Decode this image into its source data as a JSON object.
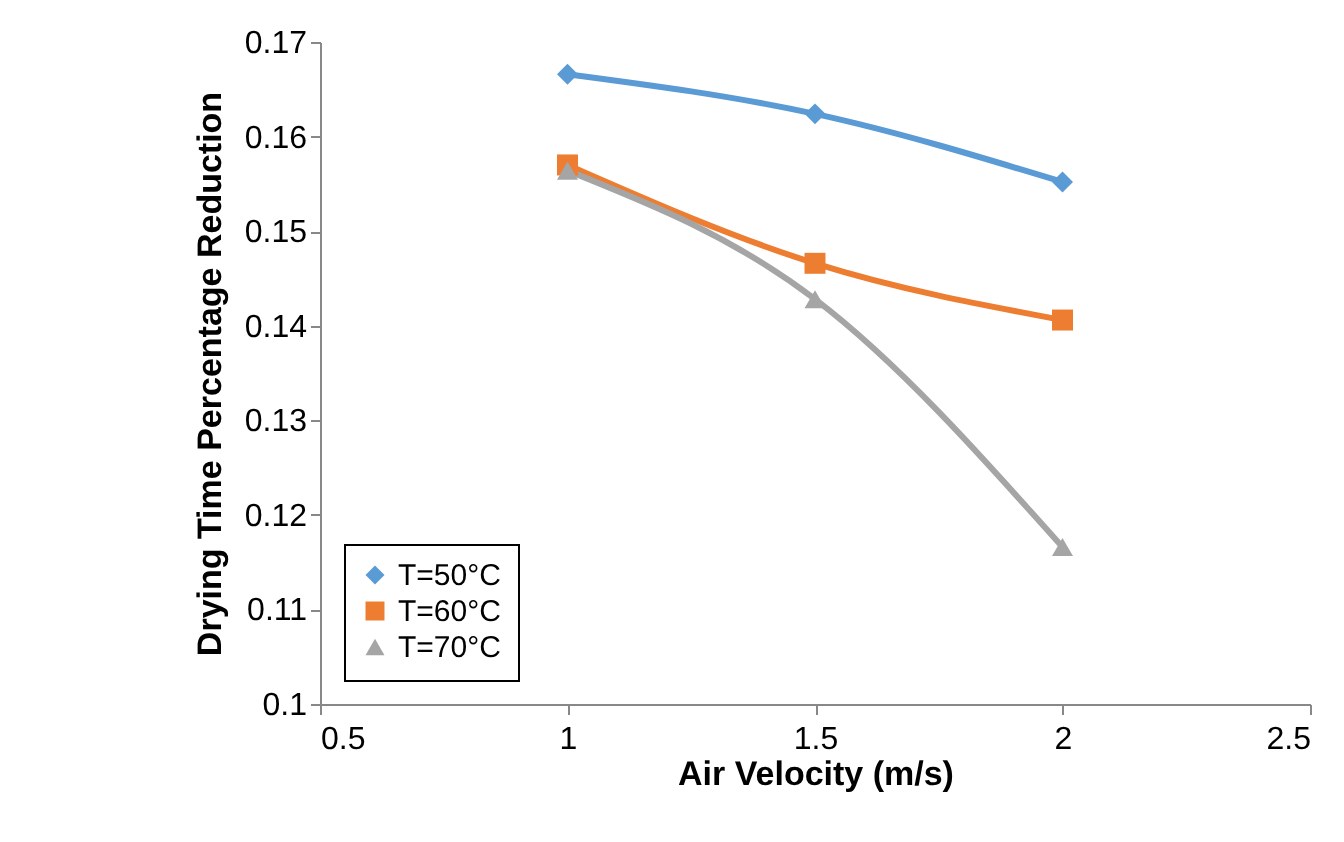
{
  "chart_data": {
    "type": "line",
    "xlabel": "Air Velocity (m/s)",
    "ylabel": "Drying Time Percentage Reduction",
    "x": [
      1,
      1.5,
      2
    ],
    "series": [
      {
        "name": "T=50°C",
        "color": "#5b9bd5",
        "marker": "diamond",
        "values": [
          0.1666,
          0.1624,
          0.1552
        ]
      },
      {
        "name": "T=60°C",
        "color": "#ed7d31",
        "marker": "square",
        "values": [
          0.157,
          0.1466,
          0.1406
        ]
      },
      {
        "name": "T=70°C",
        "color": "#a5a5a5",
        "marker": "triangle",
        "values": [
          0.1564,
          0.1428,
          0.1166
        ]
      }
    ],
    "xlim": [
      0.5,
      2.5
    ],
    "xticks": [
      0.5,
      1,
      1.5,
      2,
      2.5
    ],
    "ylim": [
      0.1,
      0.17
    ],
    "yticks": [
      0.1,
      0.11,
      0.12,
      0.13,
      0.14,
      0.15,
      0.16,
      0.17
    ],
    "grid": false,
    "legend": "bottom left",
    "line_style": "solid"
  }
}
